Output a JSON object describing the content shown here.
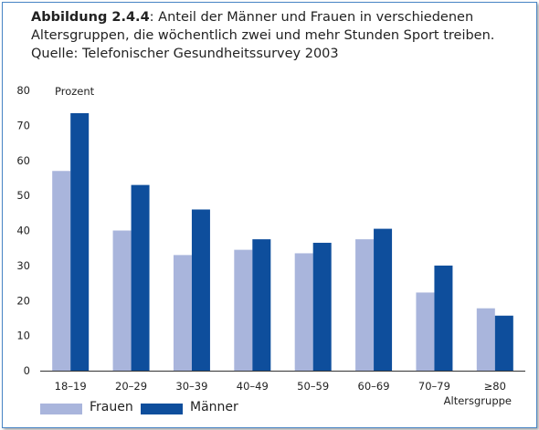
{
  "caption": {
    "label": "Abbildung 2.4.4",
    "text": ": Anteil der Männer und Frauen in verschiedenen Altersgruppen, die wöchentlich zwei und mehr Stunden Sport treiben. Quelle: Telefonischer Gesundheitssurvey 2003"
  },
  "colors": {
    "frauen": "#a9b5dc",
    "maenner": "#0e4e9c",
    "frame": "#4a86c5"
  },
  "chart_data": {
    "type": "bar",
    "ylabel": "Prozent",
    "xlabel": "Altersgruppe",
    "ylim": [
      0,
      80
    ],
    "yticks": [
      0,
      10,
      20,
      30,
      40,
      50,
      60,
      70,
      80
    ],
    "grid": false,
    "legend_position": "bottom-left",
    "categories": [
      "18–19",
      "20–29",
      "30–39",
      "40–49",
      "50–59",
      "60–69",
      "70–79",
      "≥80"
    ],
    "series": [
      {
        "name": "Frauen",
        "values": [
          57.0,
          40.0,
          33.0,
          34.5,
          33.5,
          37.5,
          22.3,
          17.8
        ]
      },
      {
        "name": "Männer",
        "values": [
          73.5,
          53.0,
          46.0,
          37.5,
          36.5,
          40.5,
          30.0,
          15.7
        ]
      }
    ]
  }
}
